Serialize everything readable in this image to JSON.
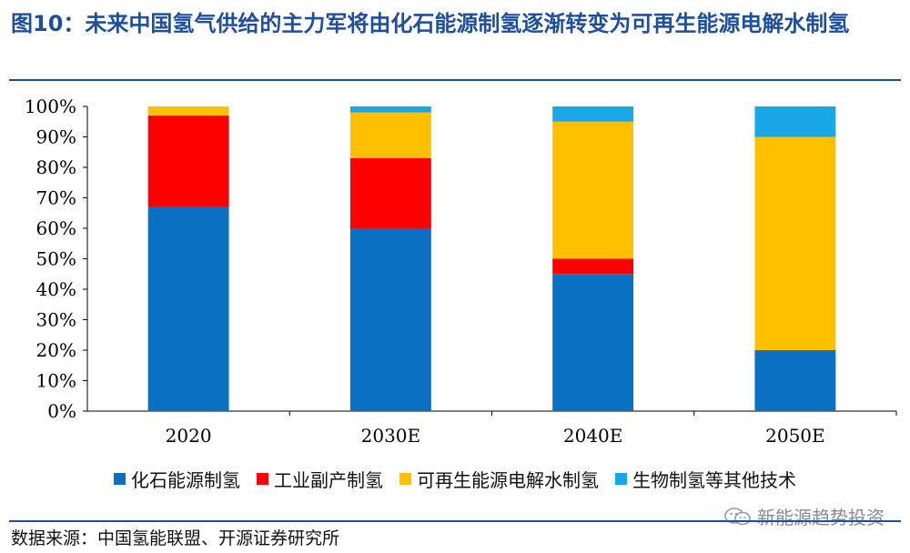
{
  "header": {
    "title": "图10：未来中国氢气供给的主力军将由化石能源制氢逐渐转变为可再生能源电解水制氢"
  },
  "chart_data": {
    "type": "bar",
    "stacked": true,
    "categories": [
      "2020",
      "2030E",
      "2040E",
      "2050E"
    ],
    "series": [
      {
        "name": "化石能源制氢",
        "color": "#0a70c2",
        "values": [
          67,
          60,
          45,
          20
        ]
      },
      {
        "name": "工业副产制氢",
        "color": "#ff0000",
        "values": [
          30,
          23,
          5,
          0
        ]
      },
      {
        "name": "可再生能源电解水制氢",
        "color": "#ffc000",
        "values": [
          3,
          15,
          45,
          70
        ]
      },
      {
        "name": "生物制氢等其他技术",
        "color": "#1aa7e8",
        "values": [
          0,
          2,
          5,
          10
        ]
      }
    ],
    "ylim": [
      0,
      100
    ],
    "yticks": [
      "0%",
      "10%",
      "20%",
      "30%",
      "40%",
      "50%",
      "60%",
      "70%",
      "80%",
      "90%",
      "100%"
    ],
    "grid": false,
    "legend_position": "bottom"
  },
  "footer": {
    "source": "数据来源：中国氢能联盟、开源证券研究所",
    "watermark": "新能源趋势投资"
  }
}
